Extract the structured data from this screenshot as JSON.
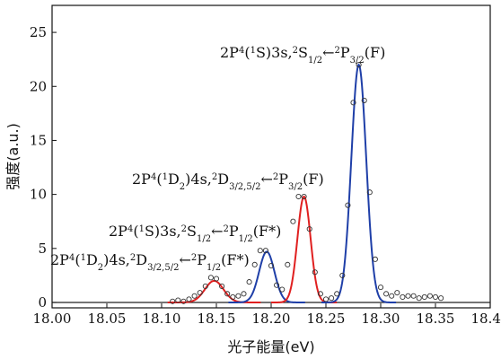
{
  "chart_data": {
    "type": "line",
    "xlabel": "光子能量(eV)",
    "ylabel": "强度(a.u.)",
    "xlim": [
      18.0,
      18.4
    ],
    "ylim": [
      -0.5,
      27.5
    ],
    "x_ticks": [
      "18.00",
      "18.05",
      "18.10",
      "18.15",
      "18.20",
      "18.25",
      "18.30",
      "18.35",
      "18.40"
    ],
    "y_ticks": [
      "0",
      "5",
      "10",
      "15",
      "20",
      "25"
    ],
    "grid": false,
    "legend": "none",
    "colors": {
      "blue_fit": "#1f3fa8",
      "red_fit": "#e02020",
      "baseline": "#222222",
      "points": "#333333"
    },
    "peaks": [
      {
        "center": 18.148,
        "height": 2.0,
        "width": 0.0085,
        "color": "red"
      },
      {
        "center": 18.196,
        "height": 4.7,
        "width": 0.007,
        "color": "blue"
      },
      {
        "center": 18.23,
        "height": 9.8,
        "width": 0.006,
        "color": "red"
      },
      {
        "center": 18.28,
        "height": 22.0,
        "width": 0.0068,
        "color": "blue"
      }
    ],
    "series": [
      {
        "marker": "open-circle",
        "x": [
          18.11,
          18.115,
          18.12,
          18.125,
          18.13,
          18.135,
          18.14,
          18.145,
          18.15,
          18.155,
          18.16,
          18.165,
          18.17,
          18.175,
          18.18,
          18.185,
          18.19,
          18.195,
          18.2,
          18.205,
          18.21,
          18.215,
          18.22,
          18.225,
          18.23,
          18.235,
          18.24,
          18.245,
          18.25,
          18.255,
          18.26,
          18.265,
          18.27,
          18.275,
          18.28,
          18.285,
          18.29,
          18.295,
          18.3,
          18.305,
          18.31,
          18.315,
          18.32,
          18.325,
          18.33,
          18.335,
          18.34,
          18.345,
          18.35,
          18.355
        ],
        "y": [
          0.1,
          0.2,
          0.1,
          0.3,
          0.6,
          0.9,
          1.5,
          2.3,
          2.2,
          1.5,
          0.8,
          0.5,
          0.6,
          0.8,
          1.9,
          3.5,
          4.8,
          4.8,
          3.4,
          1.6,
          1.2,
          3.5,
          7.5,
          9.8,
          9.8,
          6.8,
          2.8,
          0.8,
          0.3,
          0.4,
          0.8,
          2.5,
          9.0,
          18.5,
          22.0,
          18.7,
          10.2,
          4.0,
          1.4,
          0.8,
          0.6,
          0.9,
          0.5,
          0.6,
          0.6,
          0.4,
          0.5,
          0.6,
          0.5,
          0.4
        ]
      }
    ],
    "annotations": [
      {
        "label": "2P4(1S)3s,2S1/2←2P3/2(F)",
        "parts": [
          [
            "n",
            "2P"
          ],
          [
            "sup",
            "4"
          ],
          [
            "n",
            "("
          ],
          [
            "sup",
            "1"
          ],
          [
            "n",
            "S)3s,"
          ],
          [
            "sup",
            "2"
          ],
          [
            "n",
            "S"
          ],
          [
            "sub",
            "1/2"
          ],
          [
            "n",
            "←"
          ],
          [
            "sup",
            "2"
          ],
          [
            "n",
            "P"
          ],
          [
            "sub",
            "3/2"
          ],
          [
            "n",
            "(F)"
          ]
        ]
      },
      {
        "label": "2P4(1D2)4s,2D3/2,5/2←2P3/2(F)",
        "parts": [
          [
            "n",
            "2P"
          ],
          [
            "sup",
            "4"
          ],
          [
            "n",
            "("
          ],
          [
            "sup",
            "1"
          ],
          [
            "n",
            "D"
          ],
          [
            "sub",
            "2"
          ],
          [
            "n",
            ")4s,"
          ],
          [
            "sup",
            "2"
          ],
          [
            "n",
            "D"
          ],
          [
            "sub",
            "3/2,5/2"
          ],
          [
            "n",
            "←"
          ],
          [
            "sup",
            "2"
          ],
          [
            "n",
            "P"
          ],
          [
            "sub",
            "3/2"
          ],
          [
            "n",
            "(F)"
          ]
        ]
      },
      {
        "label": "2P4(1S)3s,2S1/2←2P1/2(F*)",
        "parts": [
          [
            "n",
            "2P"
          ],
          [
            "sup",
            "4"
          ],
          [
            "n",
            "("
          ],
          [
            "sup",
            "1"
          ],
          [
            "n",
            "S)3s,"
          ],
          [
            "sup",
            "2"
          ],
          [
            "n",
            "S"
          ],
          [
            "sub",
            "1/2"
          ],
          [
            "n",
            "←"
          ],
          [
            "sup",
            "2"
          ],
          [
            "n",
            "P"
          ],
          [
            "sub",
            "1/2"
          ],
          [
            "n",
            "(F*)"
          ]
        ]
      },
      {
        "label": "2P4(1D2)4s,2D3/2,5/2←2P1/2(F*)",
        "parts": [
          [
            "n",
            "2P"
          ],
          [
            "sup",
            "4"
          ],
          [
            "n",
            "("
          ],
          [
            "sup",
            "1"
          ],
          [
            "n",
            "D"
          ],
          [
            "sub",
            "2"
          ],
          [
            "n",
            ")4s,"
          ],
          [
            "sup",
            "2"
          ],
          [
            "n",
            "D"
          ],
          [
            "sub",
            "3/2,5/2"
          ],
          [
            "n",
            "←"
          ],
          [
            "sup",
            "2"
          ],
          [
            "n",
            "P"
          ],
          [
            "sub",
            "1/2"
          ],
          [
            "n",
            "(F*)"
          ]
        ]
      }
    ]
  }
}
